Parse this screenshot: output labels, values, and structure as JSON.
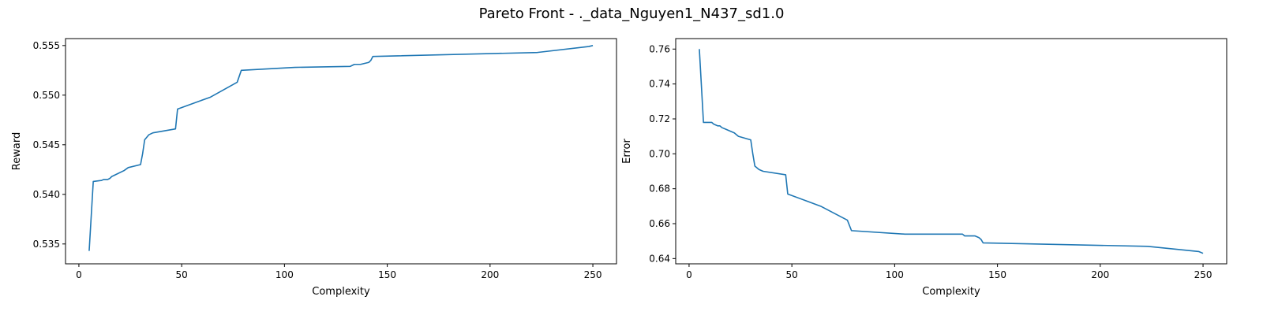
{
  "figure": {
    "title": "Pareto Front - ._data_Nguyen1_N437_sd1.0"
  },
  "chart_data": [
    {
      "type": "line",
      "title": "",
      "xlabel": "Complexity",
      "ylabel": "Reward",
      "xlim": [
        -6.5,
        261.5
      ],
      "ylim": [
        0.533,
        0.5557
      ],
      "xticks": [
        0,
        50,
        100,
        150,
        200,
        250
      ],
      "yticks": [
        0.535,
        0.54,
        0.545,
        0.55,
        0.555
      ],
      "ytick_labels": [
        "0.535",
        "0.540",
        "0.545",
        "0.550",
        "0.555"
      ],
      "grid": false,
      "series": [
        {
          "color": "#1f77b4",
          "x": [
            5,
            7,
            11,
            12,
            14,
            15,
            16,
            18,
            22,
            24,
            30,
            31,
            32,
            34,
            36,
            47,
            48,
            64,
            77,
            79,
            105,
            132,
            133,
            134,
            137,
            139,
            141,
            142,
            143,
            223,
            248,
            250
          ],
          "y": [
            0.5343,
            0.5413,
            0.5414,
            0.5415,
            0.5415,
            0.5416,
            0.5418,
            0.542,
            0.5424,
            0.5427,
            0.543,
            0.5441,
            0.5455,
            0.546,
            0.5462,
            0.5466,
            0.5486,
            0.5498,
            0.5513,
            0.5525,
            0.5528,
            0.5529,
            0.553,
            0.5531,
            0.5531,
            0.5532,
            0.5533,
            0.5535,
            0.5539,
            0.5543,
            0.5549,
            0.555
          ]
        }
      ]
    },
    {
      "type": "line",
      "title": "",
      "xlabel": "Complexity",
      "ylabel": "Error",
      "xlim": [
        -6.5,
        261.5
      ],
      "ylim": [
        0.637,
        0.766
      ],
      "xticks": [
        0,
        50,
        100,
        150,
        200,
        250
      ],
      "yticks": [
        0.64,
        0.66,
        0.68,
        0.7,
        0.72,
        0.74,
        0.76
      ],
      "ytick_labels": [
        "0.64",
        "0.66",
        "0.68",
        "0.70",
        "0.72",
        "0.74",
        "0.76"
      ],
      "grid": false,
      "series": [
        {
          "color": "#1f77b4",
          "x": [
            5,
            7,
            11,
            12,
            14,
            15,
            16,
            18,
            22,
            24,
            30,
            31,
            32,
            34,
            36,
            47,
            48,
            64,
            77,
            79,
            105,
            132,
            133,
            134,
            137,
            139,
            141,
            142,
            143,
            223,
            248,
            250
          ],
          "y": [
            0.76,
            0.718,
            0.718,
            0.717,
            0.716,
            0.716,
            0.715,
            0.714,
            0.712,
            0.71,
            0.708,
            0.7,
            0.693,
            0.691,
            0.69,
            0.688,
            0.677,
            0.67,
            0.662,
            0.656,
            0.654,
            0.654,
            0.654,
            0.653,
            0.653,
            0.653,
            0.652,
            0.651,
            0.649,
            0.647,
            0.644,
            0.643
          ]
        }
      ]
    }
  ]
}
